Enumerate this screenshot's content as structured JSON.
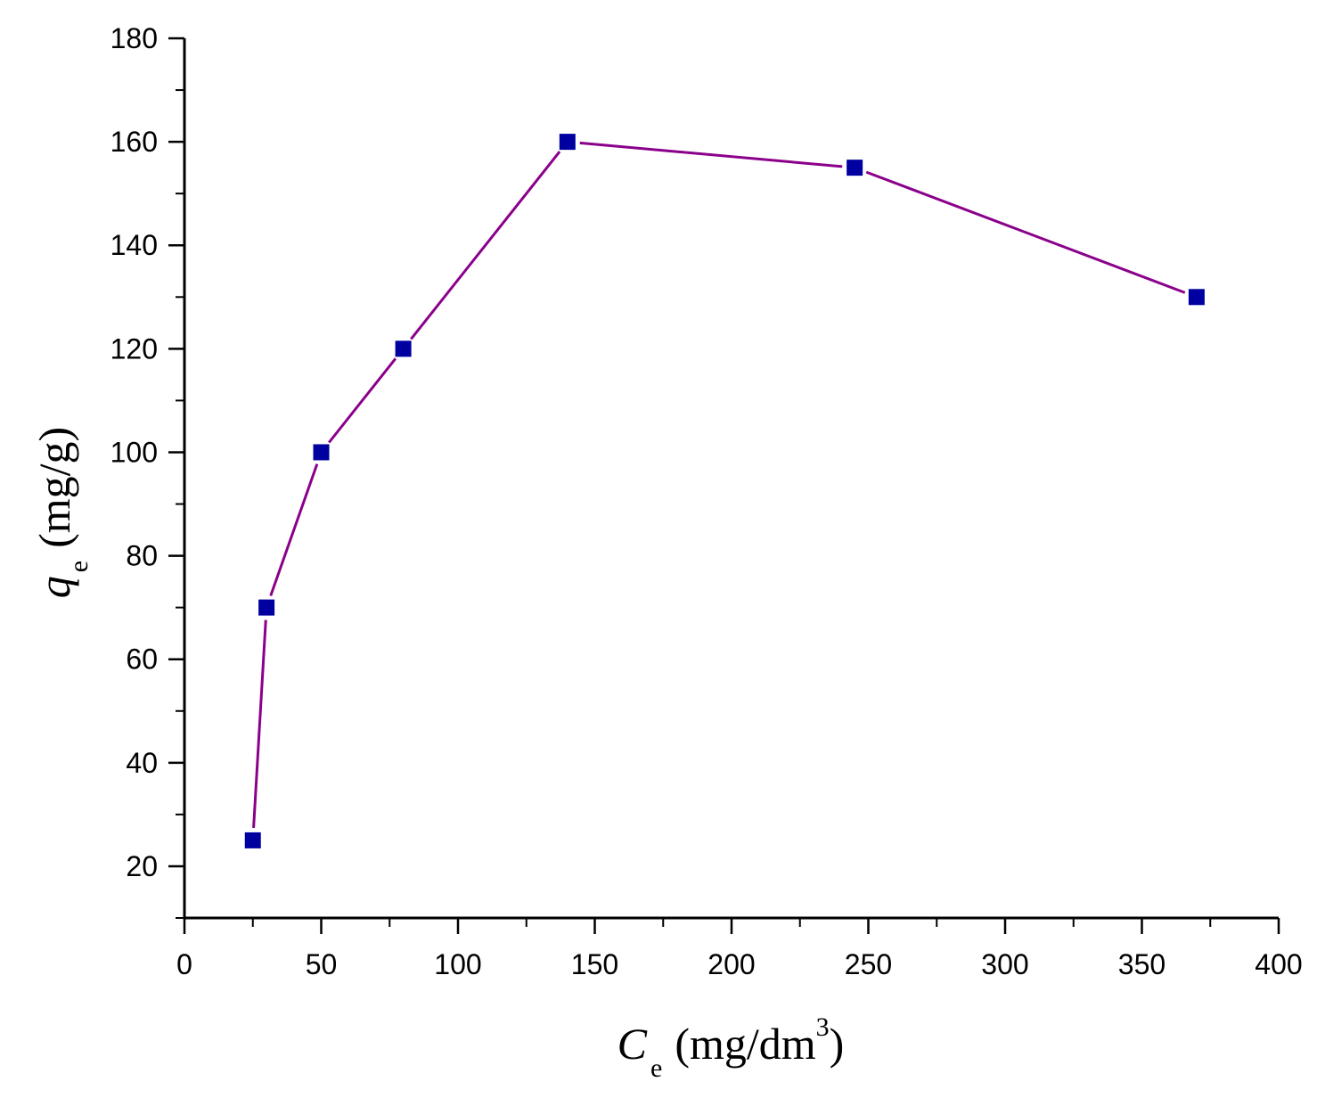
{
  "chart_data": {
    "type": "line",
    "series": [
      {
        "x": [
          25,
          30,
          50,
          80,
          140,
          245,
          370
        ],
        "y": [
          25,
          70,
          100,
          120,
          160,
          155,
          130
        ]
      }
    ],
    "xlim": [
      0,
      400
    ],
    "ylim": [
      10,
      180
    ],
    "x_ticks": [
      "0",
      "50",
      "100",
      "150",
      "200",
      "250",
      "300",
      "350",
      "400"
    ],
    "y_ticks": [
      "20",
      "40",
      "60",
      "80",
      "100",
      "120",
      "140",
      "160",
      "180"
    ],
    "xlabel": {
      "symbol": "C",
      "subscript": "e",
      "unit": "(mg/dm",
      "superscript": "3",
      "close": ")"
    },
    "ylabel": {
      "symbol": "q",
      "subscript": "e",
      "unit": "(mg/g)"
    },
    "grid": false,
    "line_color": "#8B008B",
    "marker_color": "#0000A0",
    "marker": "square"
  }
}
